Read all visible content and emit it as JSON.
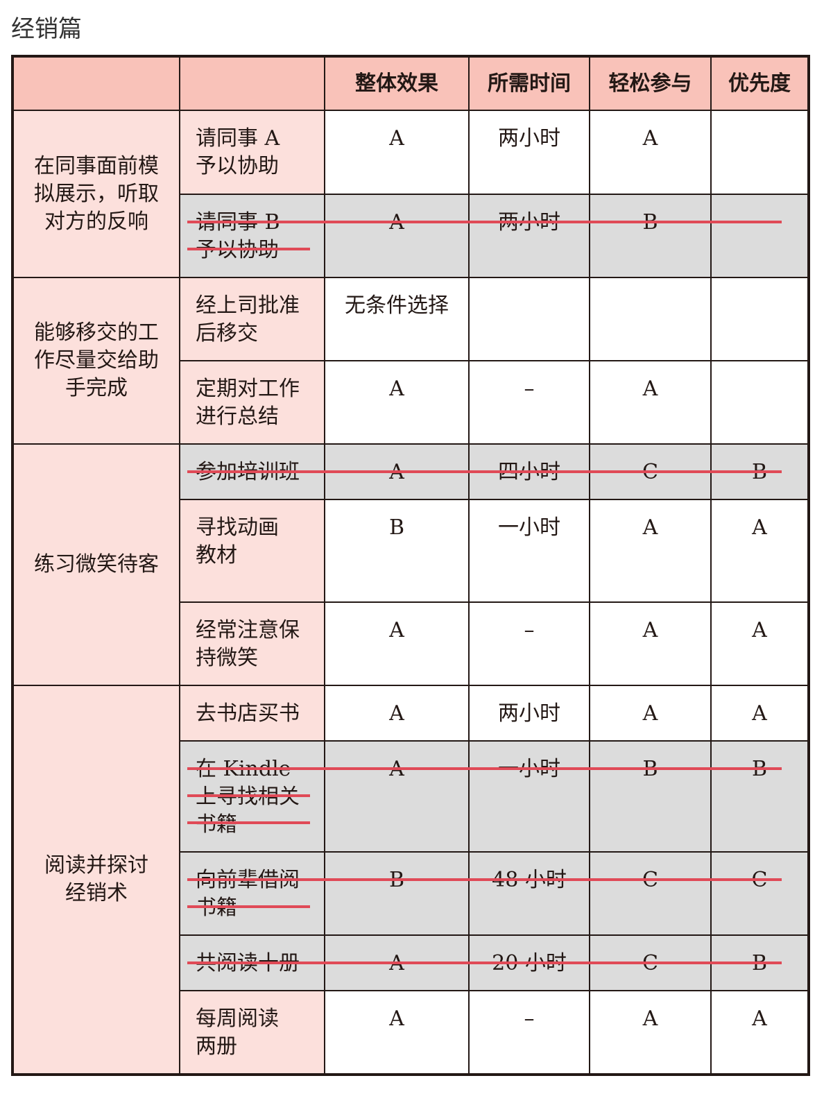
{
  "title": "经销篇",
  "colors": {
    "header": "#f9c2b9",
    "label_bg": "#fce0dc",
    "struck_bg": "#dcdcdc",
    "strike_line": "#e04a57"
  },
  "headers": [
    "",
    "",
    "整体效果",
    "所需时间",
    "轻松参与",
    "优先度"
  ],
  "groups": [
    {
      "label": "在同事面前模\n拟展示，听取\n对方的反响",
      "rows": [
        {
          "item": "请同事 A\n予以协助",
          "values": [
            "A",
            "两小时",
            "A",
            ""
          ],
          "struck": false
        },
        {
          "item": "请同事 B\n予以协助",
          "values": [
            "A",
            "两小时",
            "B",
            ""
          ],
          "struck": true
        }
      ]
    },
    {
      "label": "能够移交的工\n作尽量交给助\n手完成",
      "rows": [
        {
          "item": "经上司批准\n后移交",
          "values": [
            "无条件选择",
            "",
            "",
            ""
          ],
          "struck": false
        },
        {
          "item": "定期对工作\n进行总结",
          "values": [
            "A",
            "–",
            "A",
            ""
          ],
          "struck": false
        }
      ]
    },
    {
      "label": "练习微笑待客",
      "rows": [
        {
          "item": "参加培训班",
          "values": [
            "A",
            "四小时",
            "C",
            "B"
          ],
          "struck": true
        },
        {
          "item": "寻找动画\n教材",
          "values": [
            "B",
            "一小时",
            "A",
            "A"
          ],
          "struck": false
        },
        {
          "item": "经常注意保\n持微笑",
          "values": [
            "A",
            "–",
            "A",
            "A"
          ],
          "struck": false
        }
      ]
    },
    {
      "label": "阅读并探讨\n经销术",
      "rows": [
        {
          "item": "去书店买书",
          "values": [
            "A",
            "两小时",
            "A",
            "A"
          ],
          "struck": false
        },
        {
          "item": "在 Kindle\n上寻找相关\n书籍",
          "values": [
            "A",
            "一小时",
            "B",
            "B"
          ],
          "struck": true
        },
        {
          "item": "向前辈借阅\n书籍",
          "values": [
            "B",
            "48 小时",
            "C",
            "C"
          ],
          "struck": true
        },
        {
          "item": "共阅读十册",
          "values": [
            "A",
            "20 小时",
            "C",
            "B"
          ],
          "struck": true
        },
        {
          "item": "每周阅读\n两册",
          "values": [
            "A",
            "–",
            "A",
            "A"
          ],
          "struck": false
        }
      ]
    }
  ]
}
